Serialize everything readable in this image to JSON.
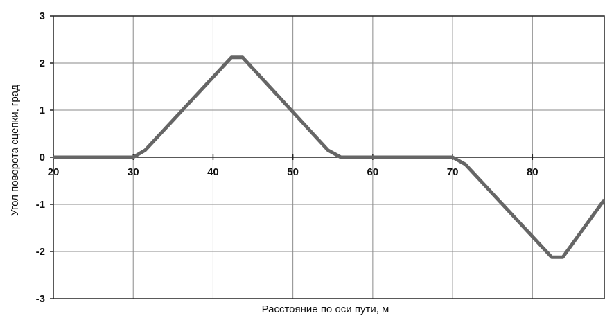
{
  "chart_data": {
    "type": "line",
    "title": "",
    "xlabel": "Расстояние по оси пути, м",
    "ylabel": "Угол поворота сцепки, град",
    "xlim": [
      20,
      89
    ],
    "ylim": [
      -3,
      3
    ],
    "x_ticks": [
      20,
      30,
      40,
      50,
      60,
      70,
      80
    ],
    "y_ticks": [
      3,
      2,
      1,
      0,
      -1,
      -2,
      -3
    ],
    "x_tick_labels": [
      "20",
      "30",
      "40",
      "50",
      "60",
      "70",
      "80"
    ],
    "y_tick_labels": [
      "3",
      "2",
      "1",
      "0",
      "-1",
      "-2",
      "-3"
    ],
    "grid": true,
    "legend": "none",
    "series": [
      {
        "color": "#666666",
        "x": [
          20,
          30,
          31.5,
          42.3,
          43.7,
          54.4,
          56,
          70,
          71.6,
          82.4,
          83.8,
          89
        ],
        "y": [
          0,
          0,
          0.15,
          2.12,
          2.12,
          0.15,
          0,
          0,
          -0.15,
          -2.12,
          -2.12,
          -0.9
        ]
      }
    ]
  }
}
